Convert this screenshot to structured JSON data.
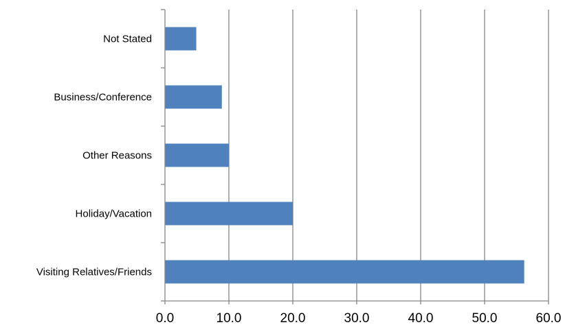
{
  "chart_data": {
    "type": "bar",
    "orientation": "horizontal",
    "categories": [
      "Not Stated",
      "Business/Conference",
      "Other Reasons",
      "Holiday/Vacation",
      "Visiting Relatives/Friends"
    ],
    "values": [
      4.9,
      8.9,
      10.0,
      20.0,
      56.2
    ],
    "xlim": [
      0,
      60
    ],
    "x_ticks": [
      "0.0",
      "10.0",
      "20.0",
      "30.0",
      "40.0",
      "50.0",
      "60.0"
    ],
    "title": "",
    "xlabel": "",
    "ylabel": "",
    "grid": "vertical",
    "legend": "none",
    "bar_color": "#4F81BD",
    "grid_color": "#868686"
  }
}
